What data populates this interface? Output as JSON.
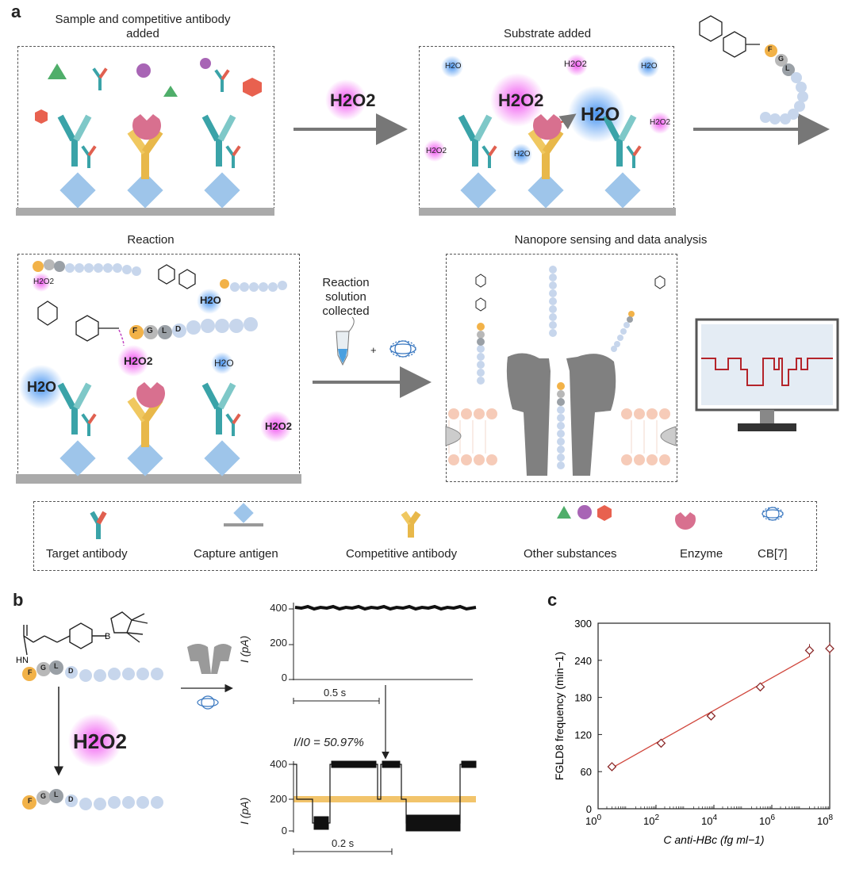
{
  "panel_a": {
    "letter": "a",
    "step1_title": "Sample and competitive antibody added",
    "step2_title": "Substrate added",
    "step3_title": "Reaction",
    "step4_title": "Nanopore sensing and data analysis",
    "arrow1_label": "H2O2",
    "collect_label": "Reaction solution collected",
    "plus": "+",
    "molecules": {
      "h2o": "H2O",
      "h2o2": "H2O2"
    },
    "peptide": {
      "F": "F",
      "G": "G",
      "L": "L",
      "D": "D"
    }
  },
  "legend": {
    "items": [
      {
        "label": "Target antibody"
      },
      {
        "label": "Capture antigen"
      },
      {
        "label": "Competitive antibody"
      },
      {
        "label": "Other substances"
      },
      {
        "label": "Enzyme"
      },
      {
        "label": "CB[7]"
      }
    ]
  },
  "panel_b": {
    "letter": "b",
    "reagent": "H2O2",
    "top_trace": {
      "ylabel": "I (pA)",
      "yticks": [
        "0",
        "200",
        "400"
      ],
      "scalebar": "0.5 s"
    },
    "bottom_trace": {
      "ylabel": "I (pA)",
      "yticks": [
        "0",
        "200",
        "400"
      ],
      "scalebar": "0.2 s",
      "annotation": "I/I0 = 50.97%"
    }
  },
  "panel_c": {
    "letter": "c"
  },
  "chart_data": {
    "type": "scatter",
    "title": "",
    "xlabel": "C anti-HBc (fg ml−1)",
    "ylabel": "FGLD8 frequency (min−1)",
    "xscale": "log",
    "xlim": [
      1,
      100000000
    ],
    "ylim": [
      0,
      300
    ],
    "yticks": [
      0,
      60,
      120,
      180,
      240,
      300
    ],
    "xtick_labels": [
      "10^0",
      "10^2",
      "10^4",
      "10^6",
      "10^8"
    ],
    "x": [
      3,
      150,
      8000,
      400000,
      20000000,
      100000000
    ],
    "y": [
      68,
      106,
      150,
      197,
      256,
      259
    ],
    "fit_line": {
      "x": [
        3,
        20000000
      ],
      "y": [
        66,
        246
      ]
    },
    "marker_color": "#8b2a2a",
    "line_color": "#d0463c"
  },
  "colors": {
    "teal": "#3aa3a8",
    "gold": "#e8b84a",
    "capture": "#9ec5ea",
    "enzyme": "#d8708f",
    "trace_highlight": "#f2c46b",
    "monitor_trace": "#b4242a"
  }
}
